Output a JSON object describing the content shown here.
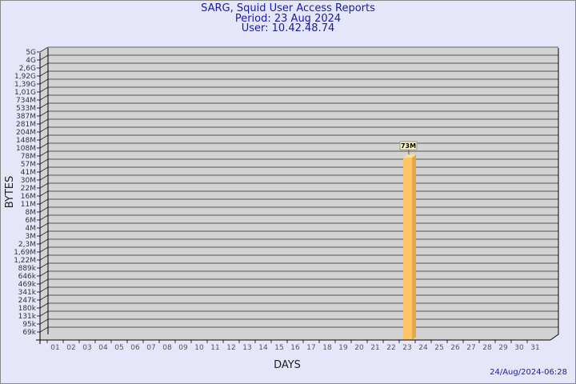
{
  "title": {
    "line1": "SARG, Squid User Access Reports",
    "line2": "Period: 23 Aug 2024",
    "line3": "User: 10.42.48.74"
  },
  "footer": {
    "timestamp": "24/Aug/2024-06:28"
  },
  "chart_data": {
    "type": "bar",
    "xlabel": "DAYS",
    "ylabel": "BYTES",
    "y_scale": "log",
    "y_ticks": [
      "69k",
      "95k",
      "131k",
      "180k",
      "247k",
      "341k",
      "469k",
      "646k",
      "889k",
      "1,22M",
      "1,69M",
      "2,3M",
      "3M",
      "4M",
      "6M",
      "8M",
      "11M",
      "16M",
      "22M",
      "30M",
      "41M",
      "57M",
      "78M",
      "108M",
      "148M",
      "204M",
      "281M",
      "387M",
      "533M",
      "734M",
      "1,01G",
      "1,39G",
      "1,92G",
      "2,6G",
      "4G",
      "5G"
    ],
    "y_tick_values": [
      69000.0,
      95000.0,
      131000.0,
      180000.0,
      247000.0,
      341000.0,
      469000.0,
      646000.0,
      889000.0,
      1220000.0,
      1690000.0,
      2300000.0,
      3000000.0,
      4000000.0,
      6000000.0,
      8000000.0,
      11000000.0,
      16000000.0,
      22000000.0,
      30000000.0,
      41000000.0,
      57000000.0,
      78000000.0,
      108000000.0,
      148000000.0,
      204000000.0,
      281000000.0,
      387000000.0,
      533000000.0,
      734000000.0,
      1010000000.0,
      1390000000.0,
      1920000000.0,
      2600000000.0,
      4000000000.0,
      5000000000.0
    ],
    "categories": [
      "01",
      "02",
      "03",
      "04",
      "05",
      "06",
      "07",
      "08",
      "09",
      "10",
      "11",
      "12",
      "13",
      "14",
      "15",
      "16",
      "17",
      "18",
      "19",
      "20",
      "21",
      "22",
      "23",
      "24",
      "25",
      "26",
      "27",
      "28",
      "29",
      "30",
      "31"
    ],
    "series": [
      {
        "values": [
          0,
          0,
          0,
          0,
          0,
          0,
          0,
          0,
          0,
          0,
          0,
          0,
          0,
          0,
          0,
          0,
          0,
          0,
          0,
          0,
          0,
          0,
          73000000.0,
          0,
          0,
          0,
          0,
          0,
          0,
          0,
          0
        ]
      }
    ],
    "data_labels": {
      "23": "73M"
    },
    "grid": true,
    "colors": {
      "bar": "#ffc566",
      "bar_side": "#e0a848",
      "bar_top": "#ffe08a",
      "wall": "#d3d3d3",
      "background": "#e6e6fa",
      "title": "#1a1aa6"
    }
  }
}
